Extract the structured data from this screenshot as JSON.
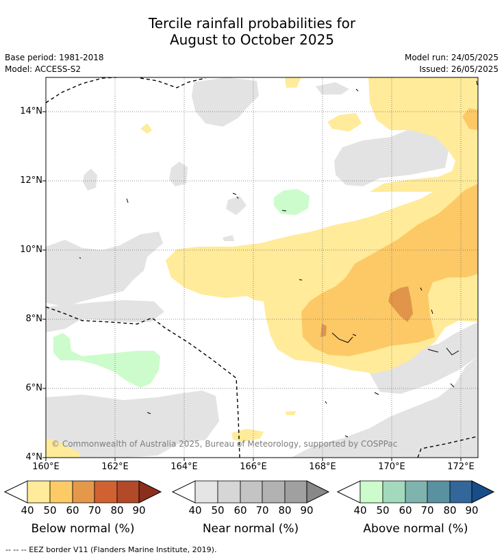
{
  "title": {
    "line1": "Tercile rainfall probabilities for",
    "line2": "August to October 2025"
  },
  "meta": {
    "base_period": "Base period: 1981-2018",
    "model": "Model: ACCESS-S2",
    "model_run": "Model run: 24/05/2025",
    "issued": "Issued: 26/05/2025"
  },
  "map": {
    "lat_labels": [
      "14°N",
      "12°N",
      "10°N",
      "8°N",
      "6°N",
      "4°N"
    ],
    "lon_labels": [
      "160°E",
      "162°E",
      "164°E",
      "166°E",
      "168°E",
      "170°E",
      "172°E"
    ],
    "copyright": "© Commonwealth of Australia 2025, Bureau of Meteorology, supported by COSPPac"
  },
  "colorbars": [
    {
      "title": "Below normal (%)",
      "ticks": [
        "40",
        "50",
        "60",
        "70",
        "80",
        "90"
      ],
      "colors": [
        "#ffeb99",
        "#fdcb66",
        "#e5974a",
        "#d06231",
        "#b24a29",
        "#8c2e1d"
      ]
    },
    {
      "title": "Near normal (%)",
      "ticks": [
        "40",
        "50",
        "60",
        "70",
        "80",
        "90"
      ],
      "colors": [
        "#e5e5e5",
        "#d6d6d6",
        "#c4c4c4",
        "#b2b2b2",
        "#a0a0a0",
        "#888888"
      ]
    },
    {
      "title": "Above normal (%)",
      "ticks": [
        "40",
        "50",
        "60",
        "70",
        "80",
        "90"
      ],
      "colors": [
        "#ccfccc",
        "#a3d9bc",
        "#7fb3ad",
        "#5991a0",
        "#336699",
        "#174e8a"
      ]
    }
  ],
  "legend_note": "--  --  -- EEZ border V11 (Flanders Marine Institute, 2019)."
}
